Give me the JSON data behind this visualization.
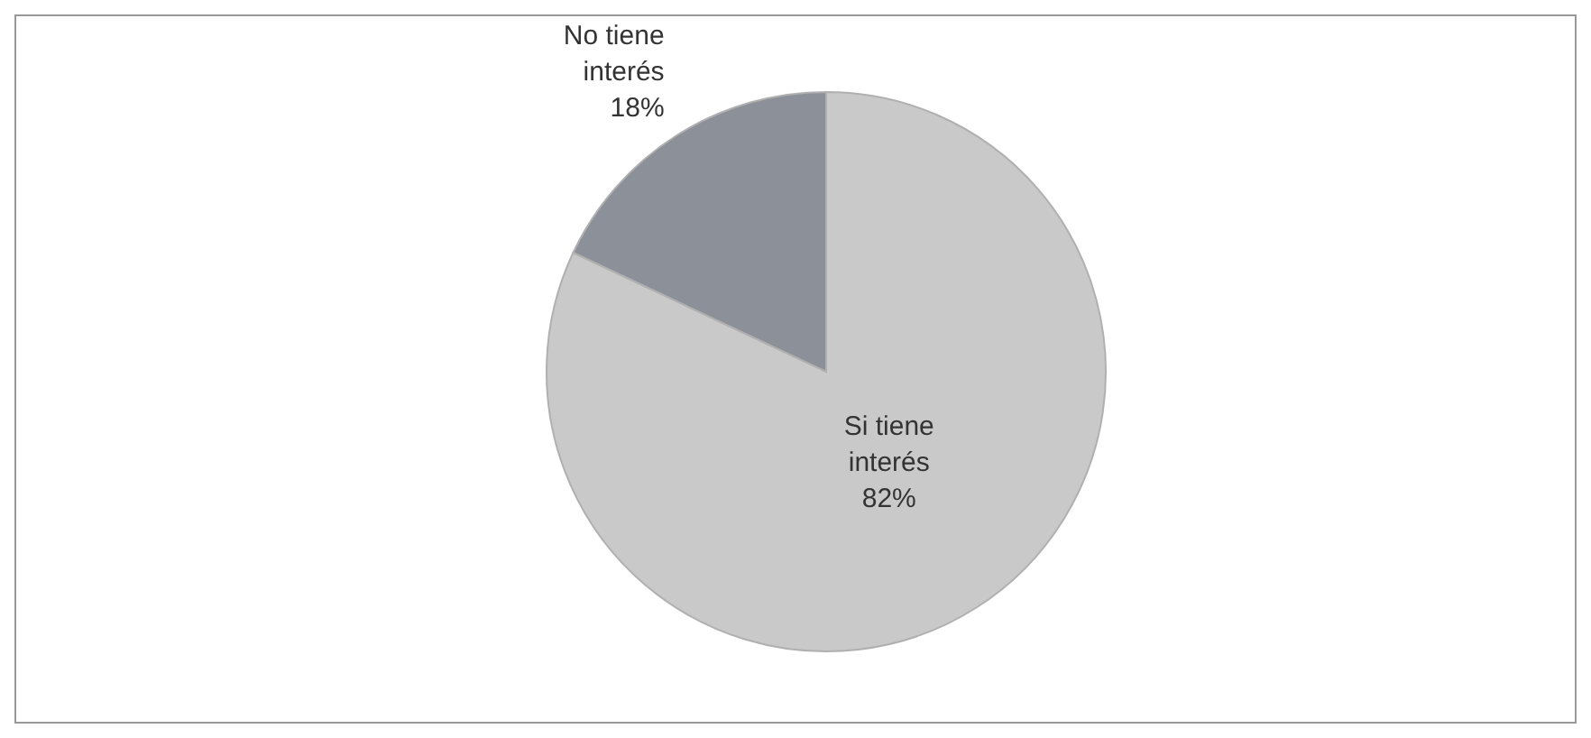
{
  "chart_data": {
    "type": "pie",
    "categories": [
      "Si tiene interés",
      "No tiene interés"
    ],
    "values": [
      82,
      18
    ],
    "colors": [
      "#c9c9c9",
      "#8c9099"
    ],
    "value_labels": [
      "82%",
      "18%"
    ]
  }
}
